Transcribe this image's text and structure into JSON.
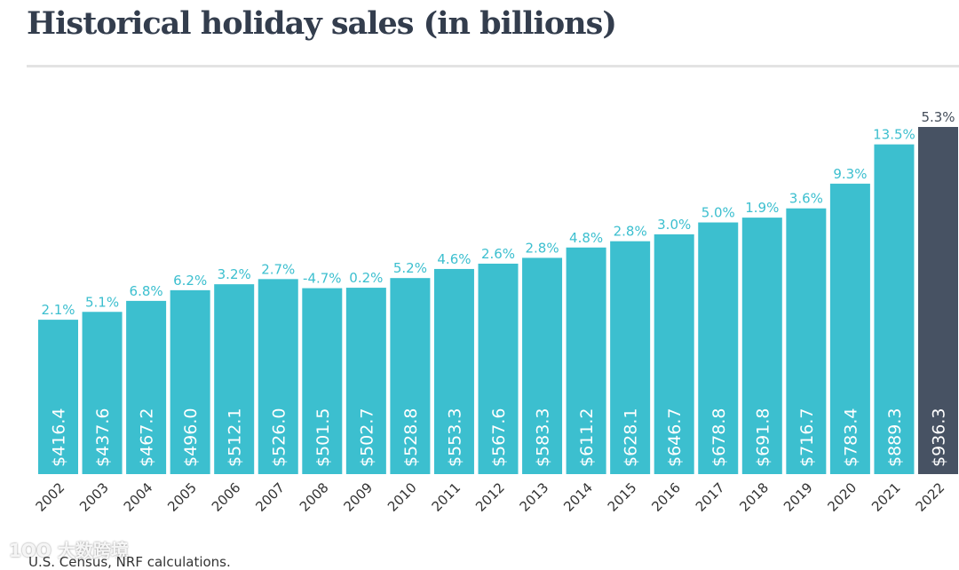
{
  "title": "Historical holiday sales (in billions)",
  "source": "U.S. Census, NRF calculations.",
  "watermark": "大数跨境",
  "colors": {
    "bar": "#3cbfcf",
    "highlight": "#475263",
    "pct_teal": "#3cbfcf",
    "pct_dark": "#444d5a"
  },
  "chart_data": {
    "type": "bar",
    "title": "Historical holiday sales (in billions)",
    "xlabel": "",
    "ylabel": "",
    "ylim": [
      0,
      936.3
    ],
    "grid": false,
    "categories": [
      "2002",
      "2003",
      "2004",
      "2005",
      "2006",
      "2007",
      "2008",
      "2009",
      "2010",
      "2011",
      "2012",
      "2013",
      "2014",
      "2015",
      "2016",
      "2017",
      "2018",
      "2019",
      "2020",
      "2021",
      "2022"
    ],
    "values": [
      416.4,
      437.6,
      467.2,
      496.0,
      512.1,
      526.0,
      501.5,
      502.7,
      528.8,
      553.3,
      567.6,
      583.3,
      611.2,
      628.1,
      646.7,
      678.8,
      691.8,
      716.7,
      783.4,
      889.3,
      936.3
    ],
    "value_labels": [
      "$416.4",
      "$437.6",
      "$467.2",
      "$496.0",
      "$512.1",
      "$526.0",
      "$501.5",
      "$502.7",
      "$528.8",
      "$553.3",
      "$567.6",
      "$583.3",
      "$611.2",
      "$628.1",
      "$646.7",
      "$678.8",
      "$691.8",
      "$716.7",
      "$783.4",
      "$889.3",
      "$936.3"
    ],
    "growth_labels": [
      "2.1%",
      "5.1%",
      "6.8%",
      "6.2%",
      "3.2%",
      "2.7%",
      "-4.7%",
      "0.2%",
      "5.2%",
      "4.6%",
      "2.6%",
      "2.8%",
      "4.8%",
      "2.8%",
      "3.0%",
      "5.0%",
      "1.9%",
      "3.6%",
      "9.3%",
      "13.5%",
      "5.3%"
    ],
    "highlight_index": 20
  }
}
